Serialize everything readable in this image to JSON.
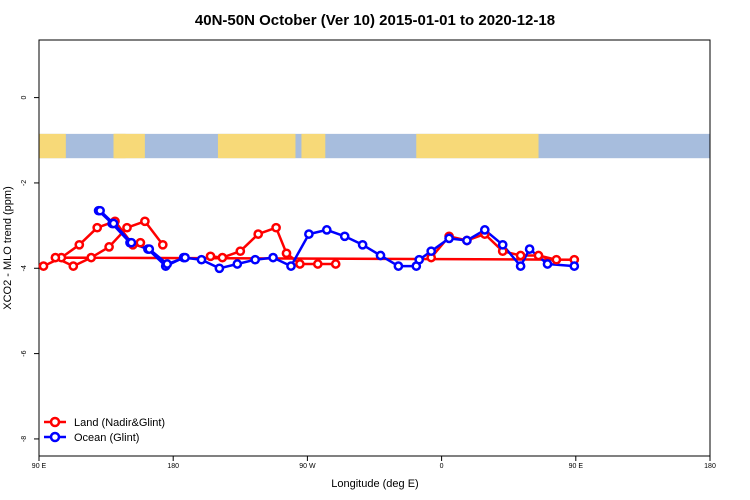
{
  "chart_data": {
    "type": "line",
    "title": "40N-50N October (Ver 10)   2015-01-01 to 2020-12-18",
    "xlabel": "Longitude (deg E)",
    "ylabel": "XCO2 - MLO trend (ppm)",
    "x_ticks": [
      "90 E",
      "180",
      "90 W",
      "0",
      "90 E",
      "180"
    ],
    "y_ticks": [
      "0",
      "-2",
      "-4",
      "-6",
      "-8"
    ],
    "ylim": [
      -8.4,
      1.35
    ],
    "grid": false,
    "legend_position": "bottom-left",
    "land_ocean_strip": {
      "y_top": -0.85,
      "y_bottom": -1.42,
      "land_color": "#f7d978",
      "ocean_color": "#a7bddd"
    },
    "series": [
      {
        "name": "Land (Nadir&Glint)",
        "color": "#ff0000",
        "segments": [
          {
            "x": [
              93,
              105,
              117,
              129,
              141,
              153,
              158
            ],
            "y": [
              -3.95,
              -3.75,
              -3.45,
              -3.05,
              -2.9,
              -3.45,
              -3.4
            ]
          },
          {
            "x": [
              205,
              213,
              225,
              237,
              249,
              256,
              265,
              277,
              289
            ],
            "y": [
              -3.72,
              -3.75,
              -3.6,
              -3.2,
              -3.05,
              -3.65,
              -3.9,
              -3.9,
              -3.9
            ]
          },
          {
            "x": [
              -7,
              5,
              17,
              29,
              41,
              53,
              65,
              77,
              89,
              101,
              113,
              125,
              137,
              149,
              161,
              173
            ],
            "y": [
              -3.75,
              -3.25,
              -3.35,
              -3.2,
              -3.6,
              -3.7,
              -3.7,
              -3.8,
              -3.8,
              -3.75,
              -3.95,
              -3.75,
              -3.5,
              -3.05,
              -2.9,
              -3.45
            ]
          }
        ]
      },
      {
        "name": "Ocean (Glint)",
        "color": "#0000ff",
        "segments": [
          {
            "x": [
              130,
              139,
              151,
              163,
              175,
              187,
              199,
              211,
              223,
              235,
              247,
              259,
              271,
              283,
              295,
              307,
              319,
              331,
              343
            ],
            "y": [
              -2.65,
              -2.95,
              -3.4,
              -3.55,
              -3.95,
              -3.75,
              -3.8,
              -4.0,
              -3.9,
              -3.8,
              -3.75,
              -3.95,
              -3.2,
              -3.1,
              -3.25,
              -3.45,
              -3.7,
              -3.95,
              -3.95
            ]
          },
          {
            "x": [
              -15,
              -7,
              5,
              17,
              29,
              41,
              53,
              59,
              71,
              89
            ],
            "y": [
              -3.8,
              -3.6,
              -3.3,
              -3.35,
              -3.1,
              -3.45,
              -3.95,
              -3.55,
              -3.9,
              -3.95
            ]
          },
          {
            "x": [
              131,
              140,
              152,
              164,
              176,
              188
            ],
            "y": [
              -2.65,
              -2.95,
              -3.4,
              -3.55,
              -3.9,
              -3.75
            ]
          }
        ]
      }
    ]
  }
}
